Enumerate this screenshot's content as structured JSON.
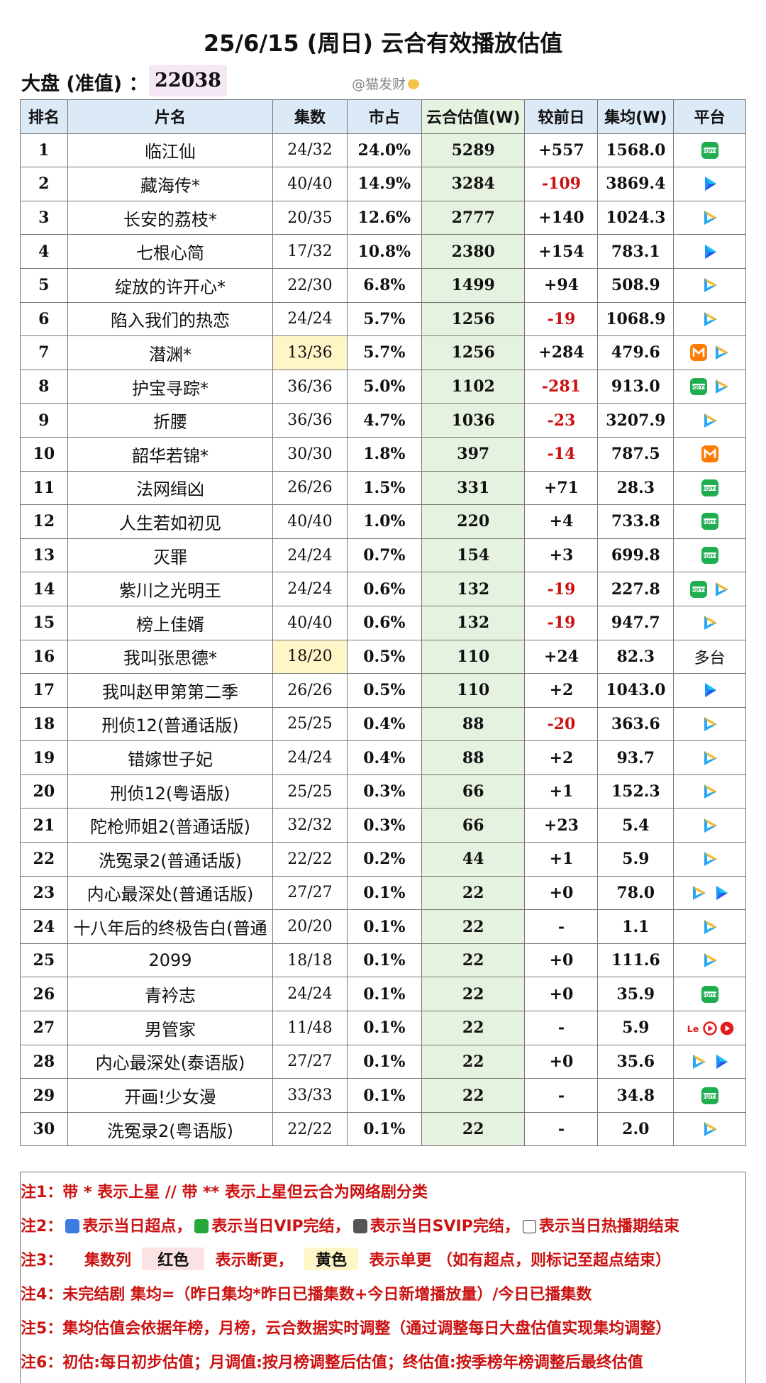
{
  "title": "25/6/15 (周日) 云合有效播放估值",
  "dapan": {
    "label": "大盘 (准值) ：",
    "value": "22038"
  },
  "watermark": "@猫发财",
  "colors": {
    "header_bg": "#dce9f7",
    "estimate_bg": "#e5f2df",
    "negative": "#cc1111",
    "yellow": "#fff6c8",
    "note_red": "#cc1111"
  },
  "headers": [
    "排名",
    "片名",
    "集数",
    "市占",
    "云合估值(W)",
    "较前日",
    "集均(W)",
    "平台"
  ],
  "rows": [
    {
      "rank": "1",
      "name": "临江仙",
      "eps": "24/32",
      "share": "24.0%",
      "est": "5289",
      "chg": "+557",
      "avg": "1568.0",
      "plat": [
        "iqiyi-icon"
      ],
      "plat_text": ""
    },
    {
      "rank": "2",
      "name": "藏海传*",
      "eps": "40/40",
      "share": "14.9%",
      "est": "3284",
      "chg": "-109",
      "avg": "3869.4",
      "plat": [
        "youku-icon"
      ],
      "plat_text": ""
    },
    {
      "rank": "3",
      "name": "长安的荔枝*",
      "eps": "20/35",
      "share": "12.6%",
      "est": "2777",
      "chg": "+140",
      "avg": "1024.3",
      "plat": [
        "tencent-video-icon"
      ],
      "plat_text": ""
    },
    {
      "rank": "4",
      "name": "七根心简",
      "eps": "17/32",
      "share": "10.8%",
      "est": "2380",
      "chg": "+154",
      "avg": "783.1",
      "plat": [
        "youku-icon"
      ],
      "plat_text": ""
    },
    {
      "rank": "5",
      "name": "绽放的许开心*",
      "eps": "22/30",
      "share": "6.8%",
      "est": "1499",
      "chg": "+94",
      "avg": "508.9",
      "plat": [
        "tencent-video-icon"
      ],
      "plat_text": ""
    },
    {
      "rank": "6",
      "name": "陷入我们的热恋",
      "eps": "24/24",
      "share": "5.7%",
      "est": "1256",
      "chg": "-19",
      "avg": "1068.9",
      "plat": [
        "tencent-video-icon"
      ],
      "plat_text": ""
    },
    {
      "rank": "7",
      "name": "潜渊*",
      "eps": "13/36",
      "share": "5.7%",
      "est": "1256",
      "chg": "+284",
      "avg": "479.6",
      "plat": [
        "mgtv-icon",
        "tencent-video-icon"
      ],
      "plat_text": "",
      "yellow": true
    },
    {
      "rank": "8",
      "name": "护宝寻踪*",
      "eps": "36/36",
      "share": "5.0%",
      "est": "1102",
      "chg": "-281",
      "avg": "913.0",
      "plat": [
        "iqiyi-icon",
        "tencent-video-icon"
      ],
      "plat_text": ""
    },
    {
      "rank": "9",
      "name": "折腰",
      "eps": "36/36",
      "share": "4.7%",
      "est": "1036",
      "chg": "-23",
      "avg": "3207.9",
      "plat": [
        "tencent-video-icon"
      ],
      "plat_text": ""
    },
    {
      "rank": "10",
      "name": "韶华若锦*",
      "eps": "30/30",
      "share": "1.8%",
      "est": "397",
      "chg": "-14",
      "avg": "787.5",
      "plat": [
        "mgtv-icon"
      ],
      "plat_text": ""
    },
    {
      "rank": "11",
      "name": "法网缉凶",
      "eps": "26/26",
      "share": "1.5%",
      "est": "331",
      "chg": "+71",
      "avg": "28.3",
      "plat": [
        "iqiyi-icon"
      ],
      "plat_text": ""
    },
    {
      "rank": "12",
      "name": "人生若如初见",
      "eps": "40/40",
      "share": "1.0%",
      "est": "220",
      "chg": "+4",
      "avg": "733.8",
      "plat": [
        "iqiyi-icon"
      ],
      "plat_text": ""
    },
    {
      "rank": "13",
      "name": "灭罪",
      "eps": "24/24",
      "share": "0.7%",
      "est": "154",
      "chg": "+3",
      "avg": "699.8",
      "plat": [
        "iqiyi-icon"
      ],
      "plat_text": ""
    },
    {
      "rank": "14",
      "name": "紫川之光明王",
      "eps": "24/24",
      "share": "0.6%",
      "est": "132",
      "chg": "-19",
      "avg": "227.8",
      "plat": [
        "iqiyi-icon",
        "tencent-video-icon"
      ],
      "plat_text": ""
    },
    {
      "rank": "15",
      "name": "榜上佳婿",
      "eps": "40/40",
      "share": "0.6%",
      "est": "132",
      "chg": "-19",
      "avg": "947.7",
      "plat": [
        "tencent-video-icon"
      ],
      "plat_text": ""
    },
    {
      "rank": "16",
      "name": "我叫张思德*",
      "eps": "18/20",
      "share": "0.5%",
      "est": "110",
      "chg": "+24",
      "avg": "82.3",
      "plat": [],
      "plat_text": "多台",
      "yellow": true
    },
    {
      "rank": "17",
      "name": "我叫赵甲第第二季",
      "eps": "26/26",
      "share": "0.5%",
      "est": "110",
      "chg": "+2",
      "avg": "1043.0",
      "plat": [
        "youku-icon"
      ],
      "plat_text": ""
    },
    {
      "rank": "18",
      "name": "刑侦12(普通话版)",
      "eps": "25/25",
      "share": "0.4%",
      "est": "88",
      "chg": "-20",
      "avg": "363.6",
      "plat": [
        "tencent-video-icon"
      ],
      "plat_text": ""
    },
    {
      "rank": "19",
      "name": "错嫁世子妃",
      "eps": "24/24",
      "share": "0.4%",
      "est": "88",
      "chg": "+2",
      "avg": "93.7",
      "plat": [
        "tencent-video-icon"
      ],
      "plat_text": ""
    },
    {
      "rank": "20",
      "name": "刑侦12(粤语版)",
      "eps": "25/25",
      "share": "0.3%",
      "est": "66",
      "chg": "+1",
      "avg": "152.3",
      "plat": [
        "tencent-video-icon"
      ],
      "plat_text": ""
    },
    {
      "rank": "21",
      "name": "陀枪师姐2(普通话版)",
      "eps": "32/32",
      "share": "0.3%",
      "est": "66",
      "chg": "+23",
      "avg": "5.4",
      "plat": [
        "tencent-video-icon"
      ],
      "plat_text": ""
    },
    {
      "rank": "22",
      "name": "洗冤录2(普通话版)",
      "eps": "22/22",
      "share": "0.2%",
      "est": "44",
      "chg": "+1",
      "avg": "5.9",
      "plat": [
        "tencent-video-icon"
      ],
      "plat_text": ""
    },
    {
      "rank": "23",
      "name": "内心最深处(普通话版)",
      "eps": "27/27",
      "share": "0.1%",
      "est": "22",
      "chg": "+0",
      "avg": "78.0",
      "plat": [
        "tencent-video-icon",
        "youku-icon"
      ],
      "plat_text": ""
    },
    {
      "rank": "24",
      "name": "十八年后的终极告白(普通",
      "eps": "20/20",
      "share": "0.1%",
      "est": "22",
      "chg": "-",
      "avg": "1.1",
      "plat": [
        "tencent-video-icon"
      ],
      "plat_text": ""
    },
    {
      "rank": "25",
      "name": "2099",
      "eps": "18/18",
      "share": "0.1%",
      "est": "22",
      "chg": "+0",
      "avg": "111.6",
      "plat": [
        "tencent-video-icon"
      ],
      "plat_text": ""
    },
    {
      "rank": "26",
      "name": "青衿志",
      "eps": "24/24",
      "share": "0.1%",
      "est": "22",
      "chg": "+0",
      "avg": "35.9",
      "plat": [
        "iqiyi-icon"
      ],
      "plat_text": ""
    },
    {
      "rank": "27",
      "name": "男管家",
      "eps": "11/48",
      "share": "0.1%",
      "est": "22",
      "chg": "-",
      "avg": "5.9",
      "plat": [
        "letv-icon",
        "sohu-icon",
        "red-play-icon"
      ],
      "plat_text": ""
    },
    {
      "rank": "28",
      "name": "内心最深处(泰语版)",
      "eps": "27/27",
      "share": "0.1%",
      "est": "22",
      "chg": "+0",
      "avg": "35.6",
      "plat": [
        "tencent-video-icon",
        "youku-icon"
      ],
      "plat_text": ""
    },
    {
      "rank": "29",
      "name": "开画!少女漫",
      "eps": "33/33",
      "share": "0.1%",
      "est": "22",
      "chg": "-",
      "avg": "34.8",
      "plat": [
        "iqiyi-icon"
      ],
      "plat_text": ""
    },
    {
      "rank": "30",
      "name": "洗冤录2(粤语版)",
      "eps": "22/22",
      "share": "0.1%",
      "est": "22",
      "chg": "-",
      "avg": "2.0",
      "plat": [
        "tencent-video-icon"
      ],
      "plat_text": ""
    }
  ],
  "notes": {
    "n1": "注1：带 * 表示上星 // 带 ** 表示上星但云合为网络剧分类",
    "n2_key": "注2：",
    "n2_a": "表示当日超点，",
    "n2_b": "表示当日VIP完结，",
    "n2_c": "表示当日SVIP完结，",
    "n2_d": "表示当日热播期结束",
    "n3_key": "注3：",
    "n3_a": "集数列",
    "n3_red": "红色",
    "n3_b": "表示断更，",
    "n3_yellow": "黄色",
    "n3_c": "表示单更 （如有超点，则标记至超点结束）",
    "n4": "注4：未完结剧 集均=（昨日集均*昨日已播集数+今日新增播放量）/今日已播集数",
    "n5": "注5：集均估值会依据年榜，月榜，云合数据实时调整（通过调整每日大盘估值实现集均调整）",
    "n6": "注6：初估:每日初步估值；月调值:按月榜调整后估值；终估值:按季榜年榜调整后最终估值"
  }
}
